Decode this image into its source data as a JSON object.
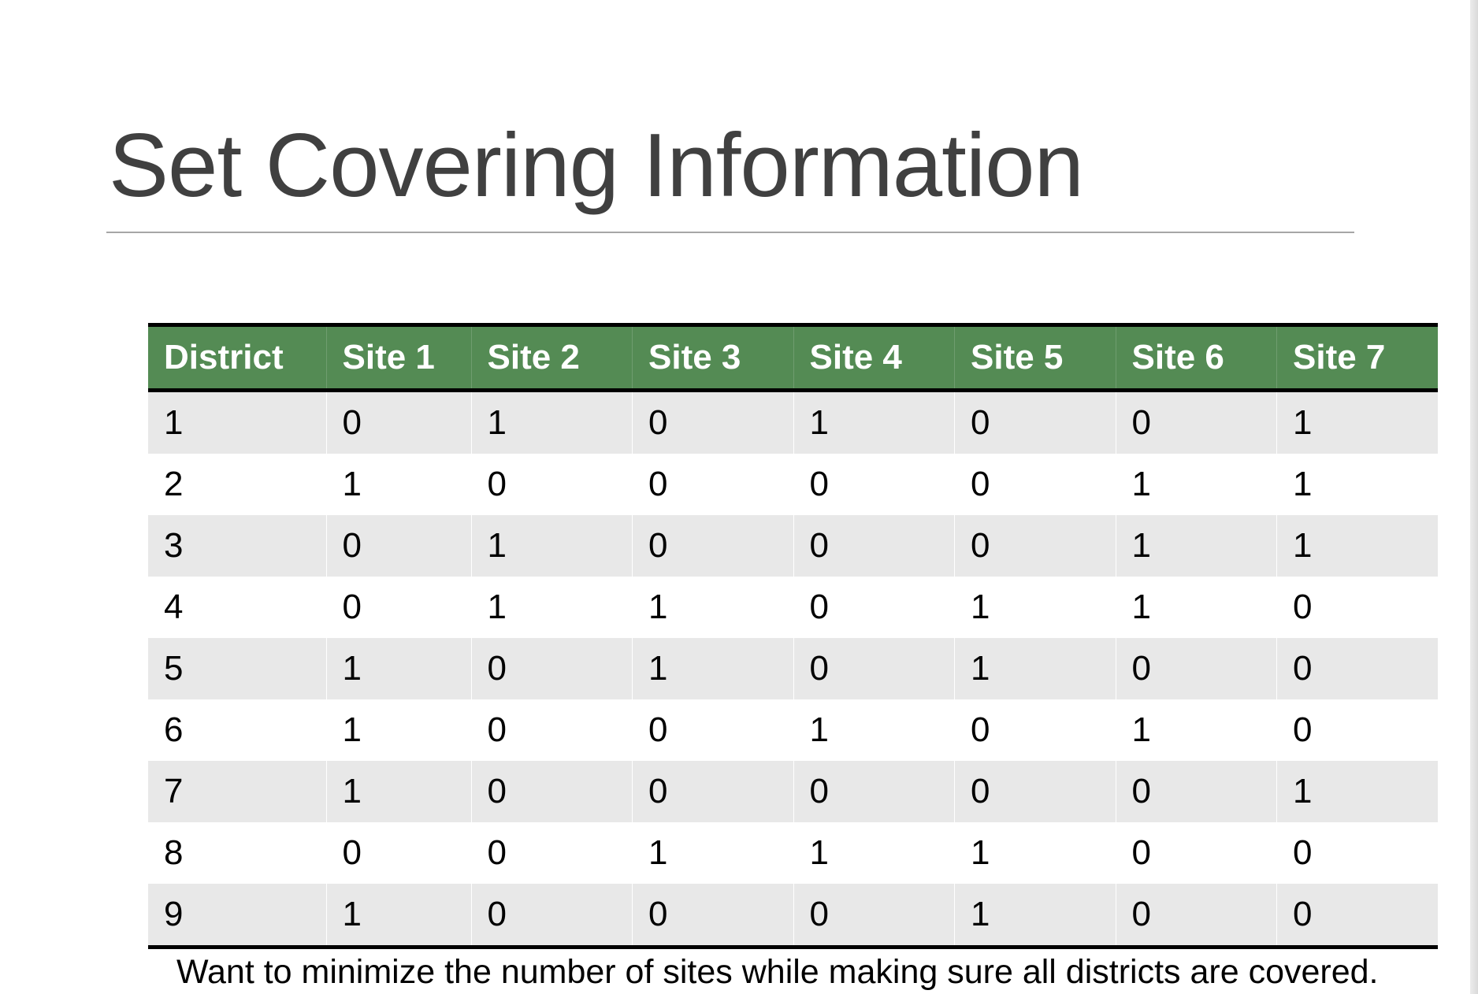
{
  "slide": {
    "title": "Set Covering Information",
    "footnote": "Want to minimize the number of sites while making sure all districts are covered."
  },
  "table": {
    "headers": [
      "District",
      "Site 1",
      "Site 2",
      "Site 3",
      "Site 4",
      "Site 5",
      "Site 6",
      "Site 7"
    ],
    "rows": [
      [
        "1",
        "0",
        "1",
        "0",
        "1",
        "0",
        "0",
        "1"
      ],
      [
        "2",
        "1",
        "0",
        "0",
        "0",
        "0",
        "1",
        "1"
      ],
      [
        "3",
        "0",
        "1",
        "0",
        "0",
        "0",
        "1",
        "1"
      ],
      [
        "4",
        "0",
        "1",
        "1",
        "0",
        "1",
        "1",
        "0"
      ],
      [
        "5",
        "1",
        "0",
        "1",
        "0",
        "1",
        "0",
        "0"
      ],
      [
        "6",
        "1",
        "0",
        "0",
        "1",
        "0",
        "1",
        "0"
      ],
      [
        "7",
        "1",
        "0",
        "0",
        "0",
        "0",
        "0",
        "1"
      ],
      [
        "8",
        "0",
        "0",
        "1",
        "1",
        "1",
        "0",
        "0"
      ],
      [
        "9",
        "1",
        "0",
        "0",
        "0",
        "1",
        "0",
        "0"
      ]
    ]
  },
  "colors": {
    "header_bg": "#548b54",
    "header_text": "#ffffff",
    "row_band": "#e8e8e8",
    "title_text": "#404040"
  }
}
